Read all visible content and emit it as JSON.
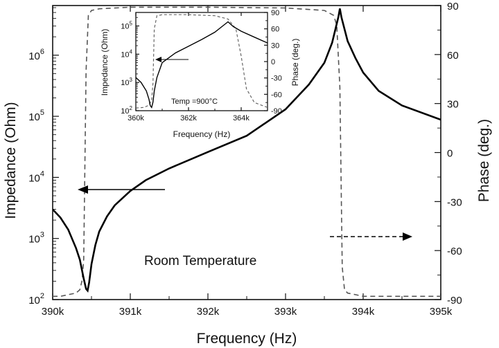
{
  "chart_data": [
    {
      "type": "line",
      "xlabel": "Frequency (Hz)",
      "ylabel": "Impedance (Ohm)",
      "y2label": "Phase (deg.)",
      "x_ticks": [
        {
          "v": 390000,
          "label": "390k"
        },
        {
          "v": 391000,
          "label": "391k"
        },
        {
          "v": 392000,
          "label": "392k"
        },
        {
          "v": 393000,
          "label": "393k"
        },
        {
          "v": 394000,
          "label": "394k"
        },
        {
          "v": 395000,
          "label": "395k"
        }
      ],
      "y_ticks": [
        {
          "v": 100,
          "base": "10",
          "exp": "2"
        },
        {
          "v": 1000,
          "base": "10",
          "exp": "3"
        },
        {
          "v": 10000,
          "base": "10",
          "exp": "4"
        },
        {
          "v": 100000,
          "base": "10",
          "exp": "5"
        },
        {
          "v": 1000000,
          "base": "10",
          "exp": "6"
        }
      ],
      "y2_ticks": [
        "-90",
        "-60",
        "-30",
        "0",
        "30",
        "60",
        "90"
      ],
      "xlim": [
        390000,
        395000
      ],
      "ylim": [
        100,
        6500000
      ],
      "y_scale": "log",
      "y2lim": [
        -90,
        90
      ],
      "annotation": "Room Temperature",
      "series": [
        {
          "axis": "left",
          "style": "solid",
          "x": [
            390000,
            390100,
            390200,
            390300,
            390350,
            390400,
            390430,
            390450,
            390470,
            390500,
            390550,
            390600,
            390700,
            390800,
            391000,
            391200,
            391500,
            392000,
            392500,
            393000,
            393300,
            393500,
            393600,
            393680,
            393700,
            393720,
            393800,
            393900,
            394000,
            394200,
            394500,
            395000
          ],
          "y": [
            3000,
            2200,
            1400,
            700,
            450,
            220,
            150,
            140,
            190,
            380,
            780,
            1300,
            2300,
            3500,
            6000,
            9000,
            14000,
            26000,
            48000,
            130000,
            330000,
            750000,
            1600000,
            4200000,
            5800000,
            4200000,
            1700000,
            900000,
            520000,
            260000,
            150000,
            88000
          ]
        },
        {
          "axis": "right",
          "style": "dashed",
          "x": [
            390000,
            390100,
            390200,
            390300,
            390350,
            390380,
            390400,
            390430,
            390460,
            390500,
            390600,
            391000,
            392000,
            393000,
            393500,
            393620,
            393660,
            393700,
            393730,
            393760,
            393800,
            393900,
            394000,
            394500,
            395000
          ],
          "y": [
            -88,
            -88,
            -87,
            -86,
            -84,
            -78,
            -65,
            50,
            84,
            87,
            88,
            89,
            89,
            88.5,
            87,
            84,
            78,
            40,
            -70,
            -84,
            -86,
            -87,
            -88,
            -88,
            -88
          ]
        }
      ]
    },
    {
      "type": "line",
      "xlabel": "Frequency (Hz)",
      "ylabel": "Impedance (Ohm)",
      "y2label": "Phase (deg.)",
      "x_ticks": [
        {
          "v": 360000,
          "label": "360k"
        },
        {
          "v": 362000,
          "label": "362k"
        },
        {
          "v": 364000,
          "label": "364k"
        }
      ],
      "y_ticks": [
        {
          "v": 100,
          "base": "10",
          "exp": "2"
        },
        {
          "v": 1000,
          "base": "10",
          "exp": "3"
        },
        {
          "v": 10000,
          "base": "10",
          "exp": "4"
        },
        {
          "v": 100000,
          "base": "10",
          "exp": "5"
        }
      ],
      "y2_ticks": [
        "-90",
        "-60",
        "-30",
        "0",
        "30",
        "60",
        "90"
      ],
      "xlim": [
        360000,
        365000
      ],
      "ylim": [
        100,
        300000
      ],
      "y_scale": "log",
      "y2lim": [
        -90,
        90
      ],
      "annotation": "Temp =900°C",
      "series": [
        {
          "axis": "left",
          "style": "solid",
          "x": [
            360000,
            360200,
            360400,
            360500,
            360550,
            360600,
            360650,
            360700,
            360800,
            361000,
            361500,
            362000,
            362500,
            363000,
            363300,
            363500,
            363700,
            364000,
            364500,
            365000
          ],
          "y": [
            1500,
            1000,
            500,
            250,
            150,
            130,
            200,
            500,
            1500,
            5000,
            11000,
            19000,
            33000,
            60000,
            100000,
            140000,
            95000,
            65000,
            40000,
            25000
          ]
        },
        {
          "axis": "right",
          "style": "dashed",
          "x": [
            360000,
            360300,
            360500,
            360600,
            360650,
            360700,
            360800,
            361000,
            362000,
            363000,
            363500,
            363800,
            364000,
            364200,
            364500,
            365000
          ],
          "y": [
            -85,
            -84,
            -80,
            -70,
            -40,
            60,
            84,
            86,
            86,
            84,
            78,
            60,
            10,
            -50,
            -75,
            -84
          ]
        }
      ]
    }
  ]
}
